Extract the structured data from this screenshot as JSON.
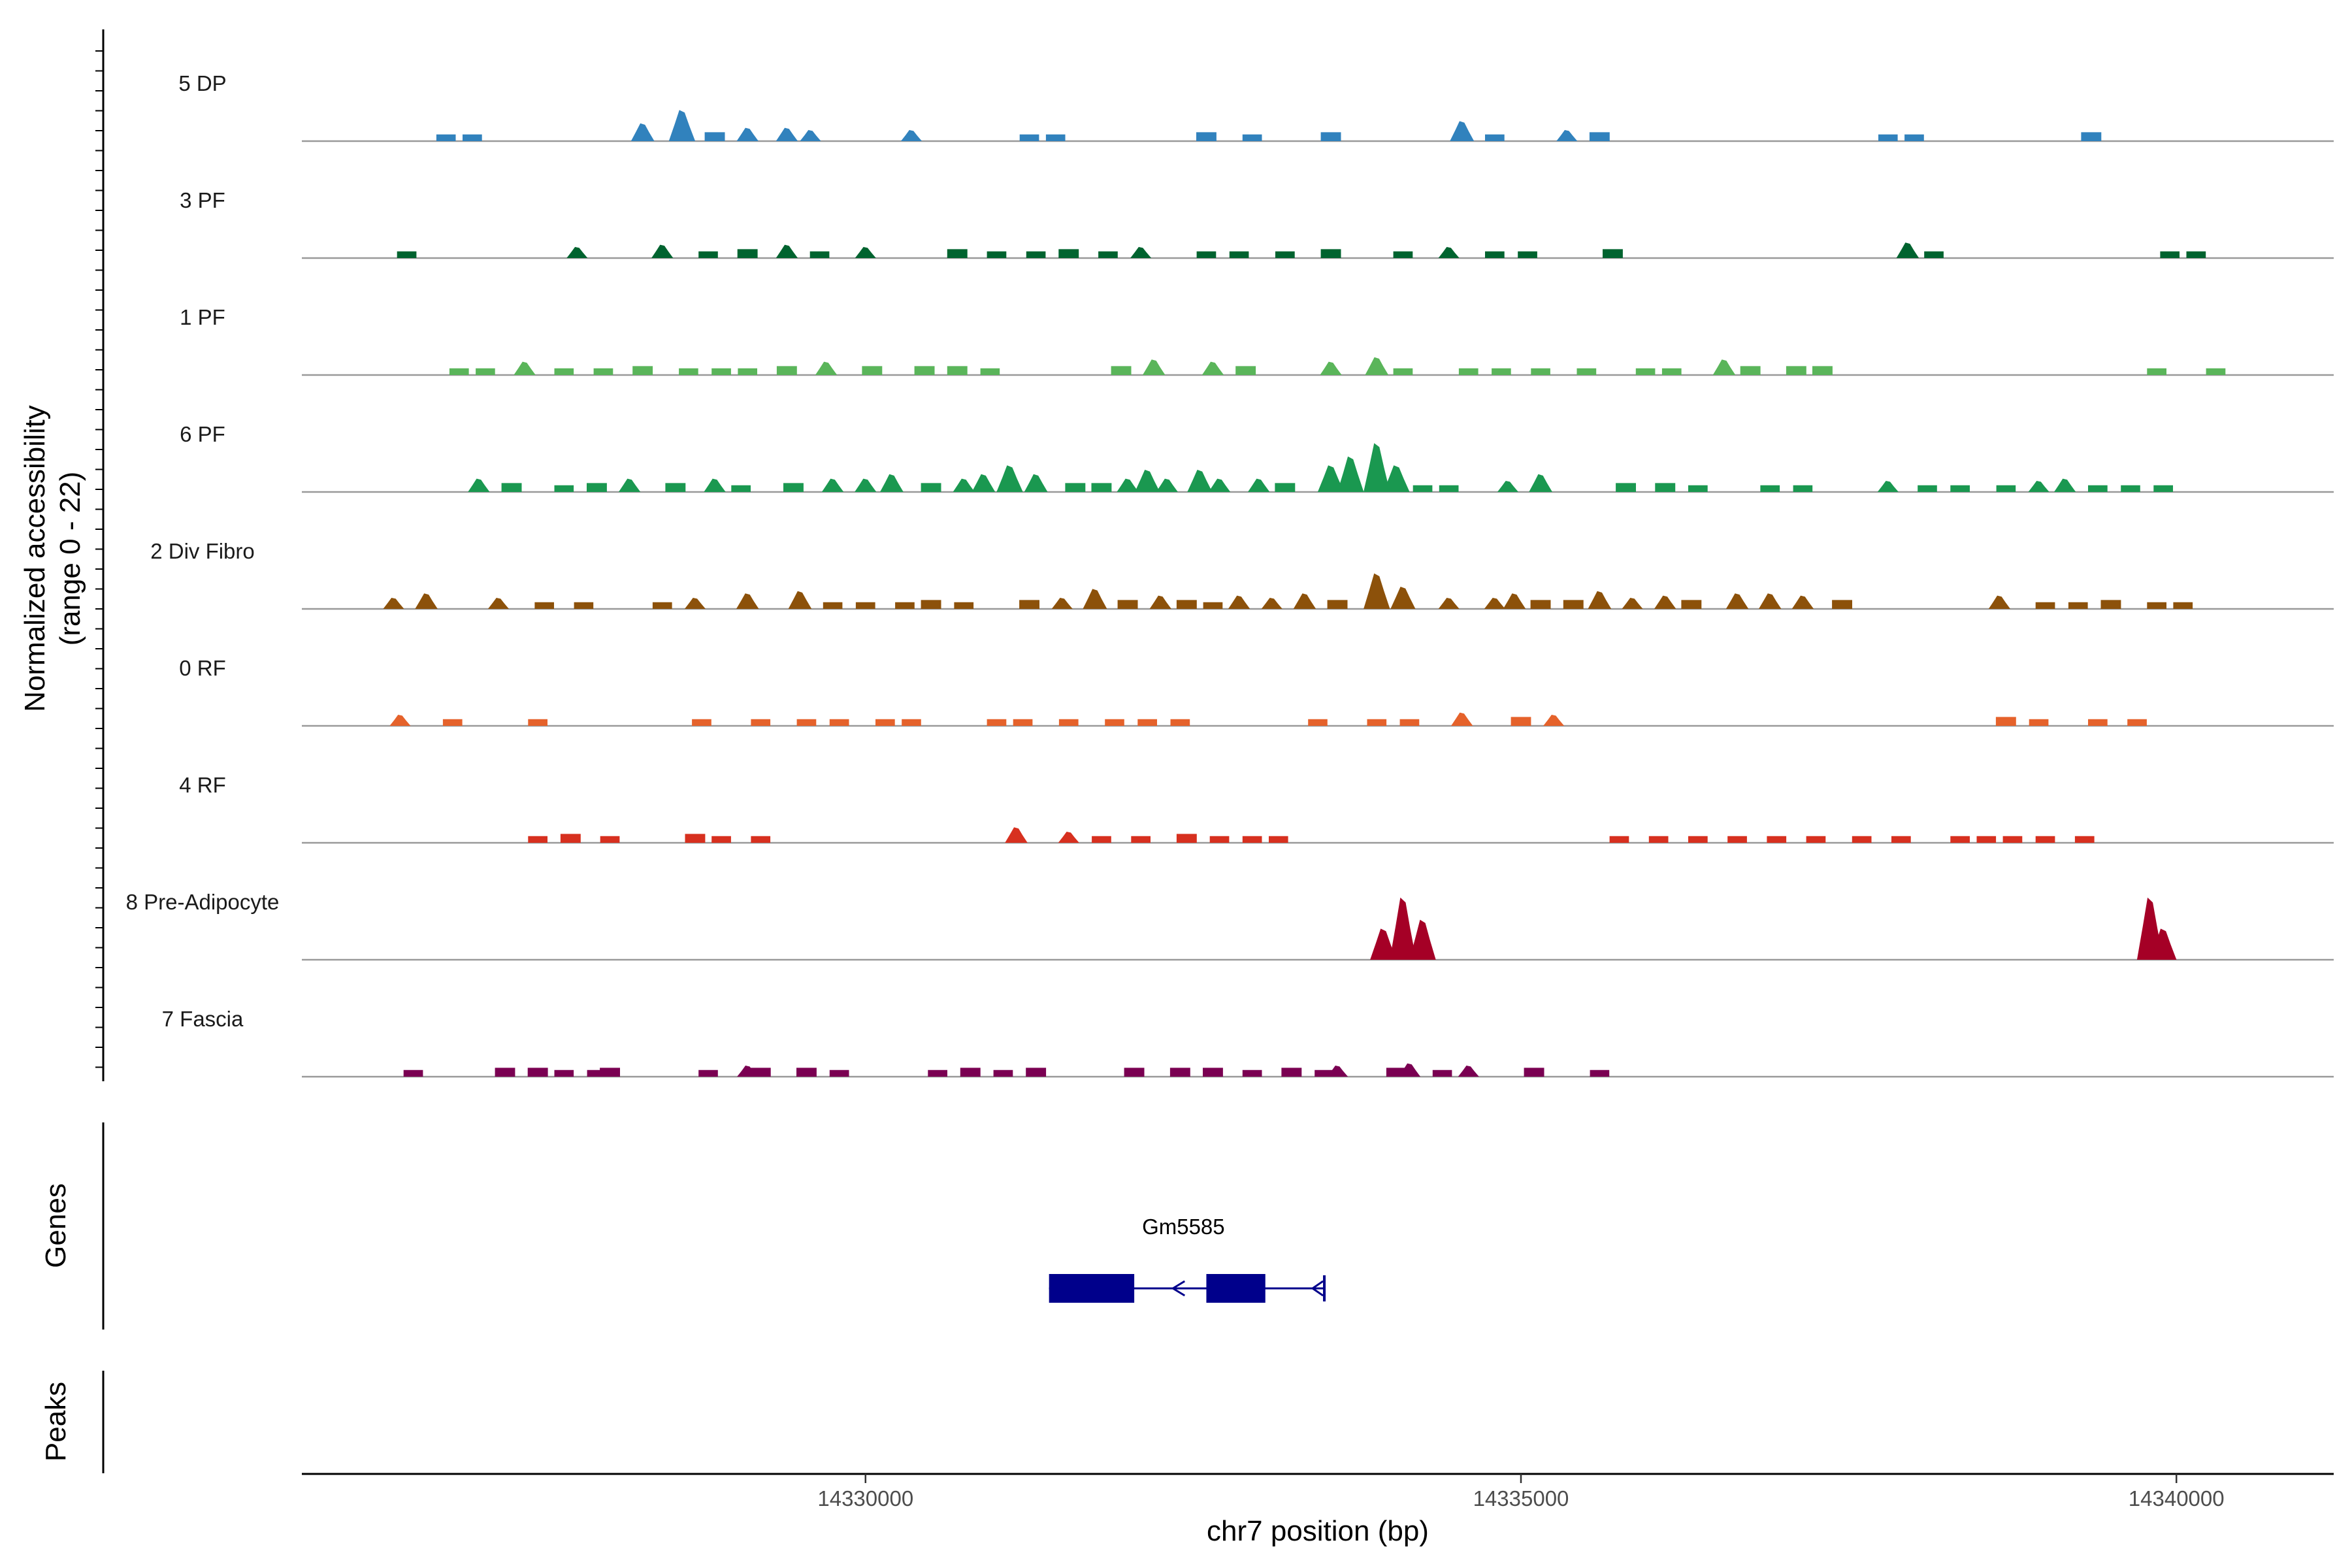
{
  "chart_data": {
    "type": "area",
    "title": "",
    "ylabel": "Normalized accessibility",
    "ylabel_range": "(range 0 - 22)",
    "ylim": [
      0,
      22
    ],
    "xlabel": "chr7 position (bp)",
    "xlim": [
      14325700,
      14341200
    ],
    "x_ticks": [
      14330000,
      14335000,
      14340000
    ],
    "x_tick_labels": [
      "14330000",
      "14335000",
      "14340000"
    ],
    "tracks": [
      {
        "name": "5 DP",
        "color": "#3182bd",
        "peaks": [
          [
            14326800,
            1.5
          ],
          [
            14327000,
            1.5
          ],
          [
            14328300,
            4
          ],
          [
            14328600,
            7
          ],
          [
            14328850,
            2
          ],
          [
            14329100,
            3
          ],
          [
            14329400,
            3
          ],
          [
            14329580,
            2.5
          ],
          [
            14330350,
            2.5
          ],
          [
            14331250,
            1.5
          ],
          [
            14331450,
            1.5
          ],
          [
            14332600,
            2
          ],
          [
            14332950,
            1.5
          ],
          [
            14333550,
            2
          ],
          [
            14334550,
            4.5
          ],
          [
            14334800,
            1.5
          ],
          [
            14335350,
            2.5
          ],
          [
            14335600,
            2
          ],
          [
            14337800,
            1.5
          ],
          [
            14338000,
            1.5
          ],
          [
            14339350,
            2
          ]
        ]
      },
      {
        "name": "3 PF",
        "color": "#00632f",
        "peaks": [
          [
            14326500,
            1.5
          ],
          [
            14327800,
            2.5
          ],
          [
            14328450,
            3
          ],
          [
            14328800,
            1.5
          ],
          [
            14329100,
            2
          ],
          [
            14329400,
            3
          ],
          [
            14329650,
            1.5
          ],
          [
            14330000,
            2.5
          ],
          [
            14330700,
            2
          ],
          [
            14331000,
            1.5
          ],
          [
            14331300,
            1.5
          ],
          [
            14331550,
            2
          ],
          [
            14331850,
            1.5
          ],
          [
            14332100,
            2.5
          ],
          [
            14332600,
            1.5
          ],
          [
            14332850,
            1.5
          ],
          [
            14333200,
            1.5
          ],
          [
            14333550,
            2
          ],
          [
            14334100,
            1.5
          ],
          [
            14334450,
            2.5
          ],
          [
            14334800,
            1.5
          ],
          [
            14335050,
            1.5
          ],
          [
            14335700,
            2
          ],
          [
            14337950,
            3.5
          ],
          [
            14338150,
            1.5
          ],
          [
            14339950,
            1.5
          ],
          [
            14340150,
            1.5
          ]
        ]
      },
      {
        "name": "1 PF",
        "color": "#5ab55a",
        "peaks": [
          [
            14326900,
            1.5
          ],
          [
            14327100,
            1.5
          ],
          [
            14327400,
            3
          ],
          [
            14327700,
            1.5
          ],
          [
            14328000,
            1.5
          ],
          [
            14328300,
            2
          ],
          [
            14328650,
            1.5
          ],
          [
            14328900,
            1.5
          ],
          [
            14329100,
            1.5
          ],
          [
            14329400,
            2
          ],
          [
            14329700,
            3
          ],
          [
            14330050,
            2
          ],
          [
            14330450,
            2
          ],
          [
            14330700,
            2
          ],
          [
            14330950,
            1.5
          ],
          [
            14331950,
            2
          ],
          [
            14332200,
            3.5
          ],
          [
            14332650,
            3
          ],
          [
            14332900,
            2
          ],
          [
            14333550,
            3
          ],
          [
            14333900,
            4
          ],
          [
            14334100,
            1.5
          ],
          [
            14334600,
            1.5
          ],
          [
            14334850,
            1.5
          ],
          [
            14335150,
            1.5
          ],
          [
            14335500,
            1.5
          ],
          [
            14335950,
            1.5
          ],
          [
            14336150,
            1.5
          ],
          [
            14336550,
            3.5
          ],
          [
            14336750,
            2
          ],
          [
            14337100,
            2
          ],
          [
            14337300,
            2
          ],
          [
            14339850,
            1.5
          ],
          [
            14340300,
            1.5
          ]
        ]
      },
      {
        "name": "6 PF",
        "color": "#1a9850",
        "peaks": [
          [
            14327050,
            3
          ],
          [
            14327300,
            2
          ],
          [
            14327700,
            1.5
          ],
          [
            14327950,
            2
          ],
          [
            14328200,
            3
          ],
          [
            14328550,
            2
          ],
          [
            14328850,
            3
          ],
          [
            14329050,
            1.5
          ],
          [
            14329450,
            2
          ],
          [
            14329750,
            3
          ],
          [
            14330000,
            3
          ],
          [
            14330200,
            4
          ],
          [
            14330500,
            2
          ],
          [
            14330750,
            3
          ],
          [
            14330900,
            4
          ],
          [
            14331100,
            6
          ],
          [
            14331300,
            4
          ],
          [
            14331600,
            2
          ],
          [
            14331800,
            2
          ],
          [
            14332000,
            3
          ],
          [
            14332150,
            5
          ],
          [
            14332300,
            3
          ],
          [
            14332550,
            5
          ],
          [
            14332700,
            3
          ],
          [
            14333000,
            3
          ],
          [
            14333200,
            2
          ],
          [
            14333550,
            6
          ],
          [
            14333700,
            8
          ],
          [
            14333900,
            11
          ],
          [
            14334050,
            6
          ],
          [
            14334250,
            1.5
          ],
          [
            14334450,
            1.5
          ],
          [
            14334900,
            2.5
          ],
          [
            14335150,
            4
          ],
          [
            14335800,
            2
          ],
          [
            14336100,
            2
          ],
          [
            14336350,
            1.5
          ],
          [
            14336900,
            1.5
          ],
          [
            14337150,
            1.5
          ],
          [
            14337800,
            2.5
          ],
          [
            14338100,
            1.5
          ],
          [
            14338350,
            1.5
          ],
          [
            14338700,
            1.5
          ],
          [
            14338950,
            2.5
          ],
          [
            14339150,
            3
          ],
          [
            14339400,
            1.5
          ],
          [
            14339650,
            1.5
          ],
          [
            14339900,
            1.5
          ]
        ]
      },
      {
        "name": "2 Div Fibro",
        "color": "#8c510a",
        "peaks": [
          [
            14326400,
            2.5
          ],
          [
            14326650,
            3.5
          ],
          [
            14327200,
            2.5
          ],
          [
            14327550,
            1.5
          ],
          [
            14327850,
            1.5
          ],
          [
            14328450,
            1.5
          ],
          [
            14328700,
            2.5
          ],
          [
            14329100,
            3.5
          ],
          [
            14329500,
            4
          ],
          [
            14329750,
            1.5
          ],
          [
            14330000,
            1.5
          ],
          [
            14330300,
            1.5
          ],
          [
            14330500,
            2
          ],
          [
            14330750,
            1.5
          ],
          [
            14331250,
            2
          ],
          [
            14331500,
            2.5
          ],
          [
            14331750,
            4.5
          ],
          [
            14332000,
            2
          ],
          [
            14332250,
            3
          ],
          [
            14332450,
            2
          ],
          [
            14332650,
            1.5
          ],
          [
            14332850,
            3
          ],
          [
            14333100,
            2.5
          ],
          [
            14333350,
            3.5
          ],
          [
            14333600,
            2
          ],
          [
            14333900,
            8
          ],
          [
            14334100,
            5
          ],
          [
            14334450,
            2.5
          ],
          [
            14334800,
            2.5
          ],
          [
            14334950,
            3.5
          ],
          [
            14335150,
            2
          ],
          [
            14335400,
            2
          ],
          [
            14335600,
            4
          ],
          [
            14335850,
            2.5
          ],
          [
            14336100,
            3
          ],
          [
            14336300,
            2
          ],
          [
            14336650,
            3.5
          ],
          [
            14336900,
            3.5
          ],
          [
            14337150,
            3
          ],
          [
            14337450,
            2
          ],
          [
            14338650,
            3
          ],
          [
            14339000,
            1.5
          ],
          [
            14339250,
            1.5
          ],
          [
            14339500,
            2
          ],
          [
            14339850,
            1.5
          ],
          [
            14340050,
            1.5
          ]
        ]
      },
      {
        "name": "0 RF",
        "color": "#e5622b",
        "peaks": [
          [
            14326450,
            2.5
          ],
          [
            14326850,
            1.5
          ],
          [
            14327500,
            1.5
          ],
          [
            14328750,
            1.5
          ],
          [
            14329200,
            1.5
          ],
          [
            14329550,
            1.5
          ],
          [
            14329800,
            1.5
          ],
          [
            14330150,
            1.5
          ],
          [
            14330350,
            1.5
          ],
          [
            14331000,
            1.5
          ],
          [
            14331200,
            1.5
          ],
          [
            14331550,
            1.5
          ],
          [
            14331900,
            1.5
          ],
          [
            14332150,
            1.5
          ],
          [
            14332400,
            1.5
          ],
          [
            14333450,
            1.5
          ],
          [
            14333900,
            1.5
          ],
          [
            14334150,
            1.5
          ],
          [
            14334550,
            3
          ],
          [
            14335000,
            2
          ],
          [
            14335250,
            2.5
          ],
          [
            14338700,
            2
          ],
          [
            14338950,
            1.5
          ],
          [
            14339400,
            1.5
          ],
          [
            14339700,
            1.5
          ]
        ]
      },
      {
        "name": "4 RF",
        "color": "#d7301f",
        "peaks": [
          [
            14327500,
            1.5
          ],
          [
            14327750,
            2
          ],
          [
            14328050,
            1.5
          ],
          [
            14328700,
            2
          ],
          [
            14328900,
            1.5
          ],
          [
            14329200,
            1.5
          ],
          [
            14331150,
            3.5
          ],
          [
            14331550,
            2.5
          ],
          [
            14331800,
            1.5
          ],
          [
            14332100,
            1.5
          ],
          [
            14332450,
            2
          ],
          [
            14332700,
            1.5
          ],
          [
            14332950,
            1.5
          ],
          [
            14333150,
            1.5
          ],
          [
            14335750,
            1.5
          ],
          [
            14336050,
            1.5
          ],
          [
            14336350,
            1.5
          ],
          [
            14336650,
            1.5
          ],
          [
            14336950,
            1.5
          ],
          [
            14337250,
            1.5
          ],
          [
            14337600,
            1.5
          ],
          [
            14337900,
            1.5
          ],
          [
            14338350,
            1.5
          ],
          [
            14338550,
            1.5
          ],
          [
            14338750,
            1.5
          ],
          [
            14339000,
            1.5
          ],
          [
            14339300,
            1.5
          ]
        ]
      },
      {
        "name": "8 Pre-Adipocyte",
        "color": "#a50026",
        "peaks": [
          [
            14333950,
            7
          ],
          [
            14334100,
            14
          ],
          [
            14334250,
            9
          ],
          [
            14339800,
            14
          ],
          [
            14339900,
            7
          ]
        ]
      },
      {
        "name": "7 Fascia",
        "color": "#7a0052",
        "peaks": [
          [
            14326550,
            1.5
          ],
          [
            14327250,
            2
          ],
          [
            14327500,
            2
          ],
          [
            14327700,
            1.5
          ],
          [
            14327950,
            1.5
          ],
          [
            14328050,
            2
          ],
          [
            14328800,
            1.5
          ],
          [
            14329100,
            2.5
          ],
          [
            14329200,
            2
          ],
          [
            14329550,
            2
          ],
          [
            14329800,
            1.5
          ],
          [
            14330550,
            1.5
          ],
          [
            14330800,
            2
          ],
          [
            14331050,
            1.5
          ],
          [
            14331300,
            2
          ],
          [
            14332050,
            2
          ],
          [
            14332400,
            2
          ],
          [
            14332650,
            2
          ],
          [
            14332950,
            1.5
          ],
          [
            14333250,
            2
          ],
          [
            14333500,
            1.5
          ],
          [
            14333600,
            2.5
          ],
          [
            14334050,
            2
          ],
          [
            14334150,
            3
          ],
          [
            14334400,
            1.5
          ],
          [
            14334600,
            2.5
          ],
          [
            14335100,
            2
          ],
          [
            14335600,
            1.5
          ]
        ]
      }
    ],
    "genes": [
      {
        "name": "Gm5585",
        "strand": "-",
        "start": 14331400,
        "end": 14333500,
        "exons": [
          [
            14331400,
            14332050
          ],
          [
            14332600,
            14333050
          ]
        ],
        "color": "#00008b"
      }
    ],
    "side_panels": [
      "Genes",
      "Peaks"
    ]
  }
}
